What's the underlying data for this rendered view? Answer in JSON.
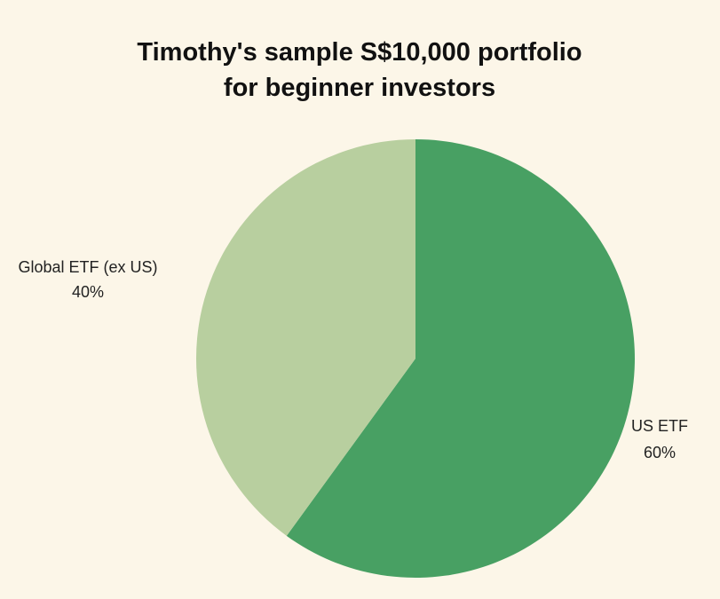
{
  "chart_data": {
    "type": "pie",
    "title_lines": [
      "Timothy's sample S$10,000 portfolio",
      "for beginner investors"
    ],
    "start_angle_deg": 0,
    "direction": "clockwise",
    "slices": [
      {
        "label": "US ETF",
        "percent_label": "60%",
        "value": 60,
        "color": "#48a063"
      },
      {
        "label": "Global ETF (ex US)",
        "percent_label": "40%",
        "value": 40,
        "color": "#b8cf9f"
      }
    ]
  }
}
